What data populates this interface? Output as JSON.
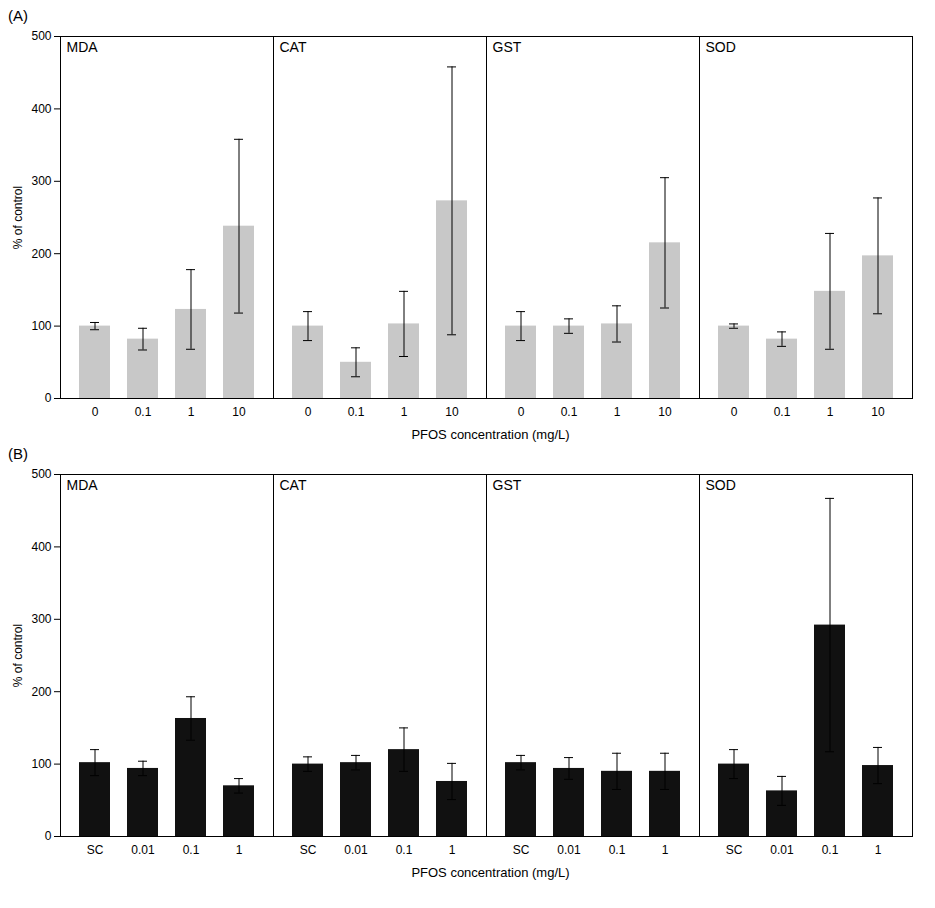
{
  "chart_data": [
    {
      "type": "bar",
      "title": "(A)",
      "categories": [
        "0",
        "0.1",
        "1",
        "10"
      ],
      "series": [
        {
          "name": "MDA",
          "values": [
            100,
            82,
            123,
            238
          ],
          "errors": [
            5,
            15,
            55,
            120
          ]
        },
        {
          "name": "CAT",
          "values": [
            100,
            50,
            103,
            273
          ],
          "errors": [
            20,
            20,
            45,
            185
          ]
        },
        {
          "name": "GST",
          "values": [
            100,
            100,
            103,
            215
          ],
          "errors": [
            20,
            10,
            25,
            90
          ]
        },
        {
          "name": "SOD",
          "values": [
            100,
            82,
            148,
            197
          ],
          "errors": [
            3,
            10,
            80,
            80
          ]
        }
      ],
      "color": "#c8c8c8",
      "xlabel": "PFOS concentration (mg/L)",
      "ylabel": "% of control",
      "ylim": [
        0,
        500
      ],
      "yticks": [
        0,
        100,
        200,
        300,
        400,
        500
      ],
      "grid": false
    },
    {
      "type": "bar",
      "title": "(B)",
      "categories": [
        "SC",
        "0.01",
        "0.1",
        "1"
      ],
      "series": [
        {
          "name": "MDA",
          "values": [
            102,
            94,
            163,
            70
          ],
          "errors": [
            18,
            10,
            30,
            10
          ]
        },
        {
          "name": "CAT",
          "values": [
            100,
            102,
            120,
            76
          ],
          "errors": [
            10,
            10,
            30,
            25
          ]
        },
        {
          "name": "GST",
          "values": [
            102,
            94,
            90,
            90
          ],
          "errors": [
            10,
            15,
            25,
            25
          ]
        },
        {
          "name": "SOD",
          "values": [
            100,
            63,
            292,
            98
          ],
          "errors": [
            20,
            20,
            175,
            25
          ]
        }
      ],
      "color": "#111111",
      "xlabel": "PFOS concentration (mg/L)",
      "ylabel": "% of control",
      "ylim": [
        0,
        500
      ],
      "yticks": [
        0,
        100,
        200,
        300,
        400,
        500
      ],
      "grid": false
    }
  ]
}
